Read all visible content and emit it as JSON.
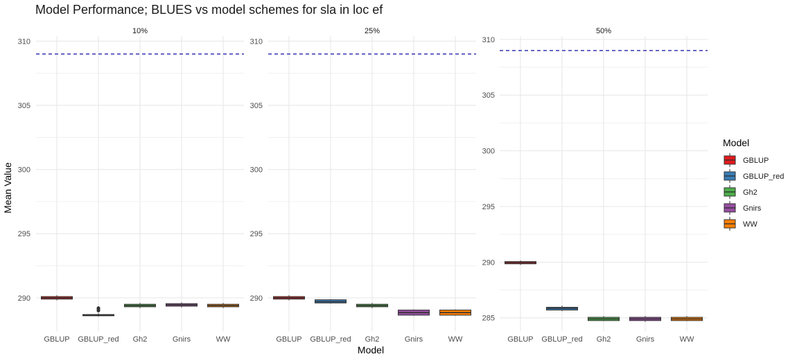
{
  "chart_data": {
    "type": "boxplot",
    "title": "Model Performance; BLUES vs model schemes for sla in loc ef",
    "xlabel": "Model",
    "ylabel": "Mean Value",
    "categories": [
      "GBLUP",
      "GBLUP_red",
      "Gh2",
      "Gnirs",
      "WW"
    ],
    "reference_line": {
      "value": 309,
      "color": "#2222aa",
      "style": "dashed"
    },
    "legend": {
      "title": "Model",
      "position": "right",
      "items": [
        {
          "name": "GBLUP",
          "color": "#e41a1c"
        },
        {
          "name": "GBLUP_red",
          "color": "#377eb8"
        },
        {
          "name": "Gh2",
          "color": "#4daf4a"
        },
        {
          "name": "Gnirs",
          "color": "#984ea3"
        },
        {
          "name": "WW",
          "color": "#ff7f00"
        }
      ]
    },
    "panels": [
      {
        "label": "10%",
        "ylim": [
          287.4,
          310.4
        ],
        "yticks": [
          290,
          295,
          300,
          305,
          310
        ],
        "boxes": [
          {
            "model": "GBLUP",
            "min": 289.8,
            "q1": 289.9,
            "median": 290.0,
            "q3": 290.1,
            "max": 290.2,
            "outliers": []
          },
          {
            "model": "GBLUP_red",
            "min": 288.55,
            "q1": 288.6,
            "median": 288.65,
            "q3": 288.7,
            "max": 288.8,
            "outliers": [
              289.0,
              289.1,
              289.2
            ]
          },
          {
            "model": "Gh2",
            "min": 289.2,
            "q1": 289.3,
            "median": 289.4,
            "q3": 289.5,
            "max": 289.6,
            "outliers": []
          },
          {
            "model": "Gnirs",
            "min": 289.25,
            "q1": 289.35,
            "median": 289.45,
            "q3": 289.55,
            "max": 289.65,
            "outliers": []
          },
          {
            "model": "WW",
            "min": 289.2,
            "q1": 289.3,
            "median": 289.4,
            "q3": 289.5,
            "max": 289.6,
            "outliers": []
          }
        ]
      },
      {
        "label": "25%",
        "ylim": [
          287.4,
          310.4
        ],
        "yticks": [
          290,
          295,
          300,
          305,
          310
        ],
        "boxes": [
          {
            "model": "GBLUP",
            "min": 289.8,
            "q1": 289.9,
            "median": 290.0,
            "q3": 290.1,
            "max": 290.2,
            "outliers": []
          },
          {
            "model": "GBLUP_red",
            "min": 289.55,
            "q1": 289.6,
            "median": 289.7,
            "q3": 289.85,
            "max": 289.9,
            "outliers": []
          },
          {
            "model": "Gh2",
            "min": 289.2,
            "q1": 289.3,
            "median": 289.4,
            "q3": 289.5,
            "max": 289.6,
            "outliers": []
          },
          {
            "model": "Gnirs",
            "min": 288.6,
            "q1": 288.65,
            "median": 288.85,
            "q3": 289.05,
            "max": 289.1,
            "outliers": []
          },
          {
            "model": "WW",
            "min": 288.6,
            "q1": 288.65,
            "median": 288.85,
            "q3": 289.05,
            "max": 289.1,
            "outliers": []
          }
        ]
      },
      {
        "label": "50%",
        "ylim": [
          283.8,
          310.3
        ],
        "yticks": [
          285,
          290,
          295,
          300,
          305,
          310
        ],
        "boxes": [
          {
            "model": "GBLUP",
            "min": 289.75,
            "q1": 289.85,
            "median": 289.95,
            "q3": 290.05,
            "max": 290.15,
            "outliers": []
          },
          {
            "model": "GBLUP_red",
            "min": 285.6,
            "q1": 285.7,
            "median": 285.85,
            "q3": 285.95,
            "max": 286.1,
            "outliers": []
          },
          {
            "model": "Gh2",
            "min": 284.7,
            "q1": 284.75,
            "median": 284.9,
            "q3": 285.05,
            "max": 285.15,
            "outliers": []
          },
          {
            "model": "Gnirs",
            "min": 284.65,
            "q1": 284.75,
            "median": 284.9,
            "q3": 285.05,
            "max": 285.15,
            "outliers": []
          },
          {
            "model": "WW",
            "min": 284.7,
            "q1": 284.75,
            "median": 284.9,
            "q3": 285.05,
            "max": 285.15,
            "outliers": []
          }
        ]
      }
    ]
  }
}
